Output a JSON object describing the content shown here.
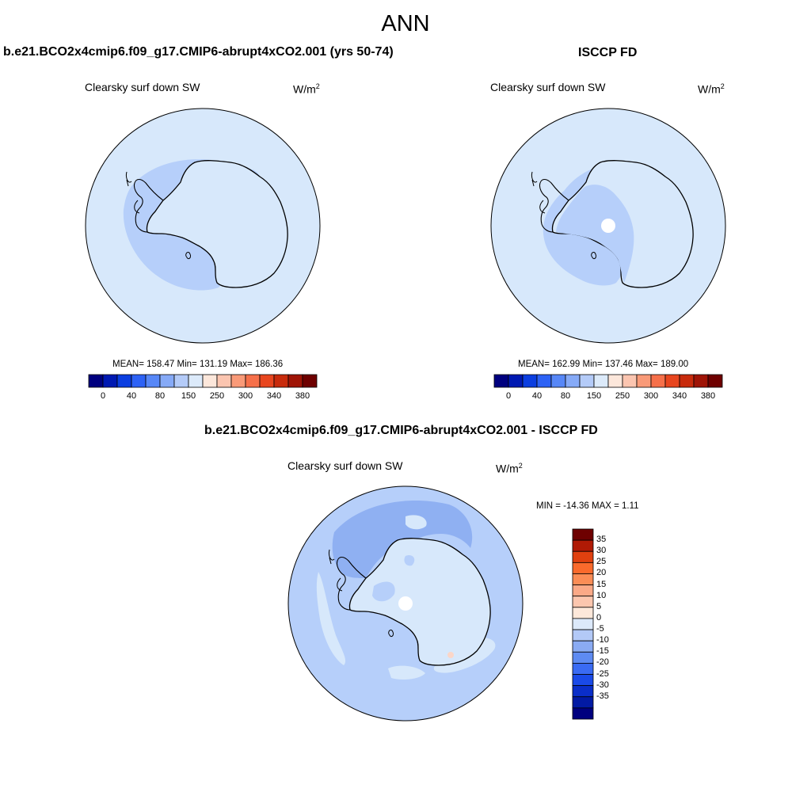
{
  "main_title": "ANN",
  "colors": {
    "outline": "#000000",
    "ocean_light": "#d7e8fb",
    "band_mid": "#b6cffa",
    "band_dark": "#8fb0f2",
    "hole": "#ffffff",
    "warm_spot": "#fbd6c8"
  },
  "panels": [
    {
      "title": "b.e21.BCO2x4cmip6.f09_g17.CMIP6-abrupt4xCO2.001 (yrs 50-74)",
      "variable": "Clearsky surf down SW",
      "units_base": "W/m",
      "units_exp": "2",
      "stats": "MEAN= 158.47  Min= 131.19  Max= 186.36",
      "colorbar": {
        "colors": [
          "#00007f",
          "#0019b2",
          "#0b3ee0",
          "#2d62f5",
          "#5787f7",
          "#86aaf7",
          "#b4cbf8",
          "#dceafa",
          "#fce7db",
          "#fbc5b0",
          "#f99a78",
          "#f6704a",
          "#e8461f",
          "#c82b0c",
          "#9f1406",
          "#6e0000"
        ],
        "labels": [
          "0",
          "40",
          "80",
          "150",
          "250",
          "300",
          "340",
          "380"
        ]
      }
    },
    {
      "title": "ISCCP FD",
      "variable": "Clearsky surf down SW",
      "units_base": "W/m",
      "units_exp": "2",
      "stats": "MEAN= 162.99  Min= 137.46  Max= 189.00",
      "colorbar": {
        "colors": [
          "#00007f",
          "#0019b2",
          "#0b3ee0",
          "#2d62f5",
          "#5787f7",
          "#86aaf7",
          "#b4cbf8",
          "#dceafa",
          "#fce7db",
          "#fbc5b0",
          "#f99a78",
          "#f6704a",
          "#e8461f",
          "#c82b0c",
          "#9f1406",
          "#6e0000"
        ],
        "labels": [
          "0",
          "40",
          "80",
          "150",
          "250",
          "300",
          "340",
          "380"
        ]
      }
    },
    {
      "title": "b.e21.BCO2x4cmip6.f09_g17.CMIP6-abrupt4xCO2.001 - ISCCP FD",
      "variable": "Clearsky surf down SW",
      "units_base": "W/m",
      "units_exp": "2",
      "stats": "MIN = -14.36 MAX =   1.11",
      "colorbar": {
        "colors": [
          "#6e0000",
          "#b01a05",
          "#e0400f",
          "#fa6a2c",
          "#fb8d56",
          "#fba987",
          "#fcc6ae",
          "#fde8da",
          "#dce9fa",
          "#b3c9f7",
          "#8aabf3",
          "#5e8bf2",
          "#3a6bf3",
          "#1a4ae8",
          "#0a2ec9",
          "#021aa4",
          "#00007f"
        ],
        "labels": [
          "35",
          "30",
          "25",
          "20",
          "15",
          "10",
          "5",
          "0",
          "-5",
          "-10",
          "-15",
          "-20",
          "-25",
          "-30",
          "-35"
        ]
      }
    }
  ]
}
